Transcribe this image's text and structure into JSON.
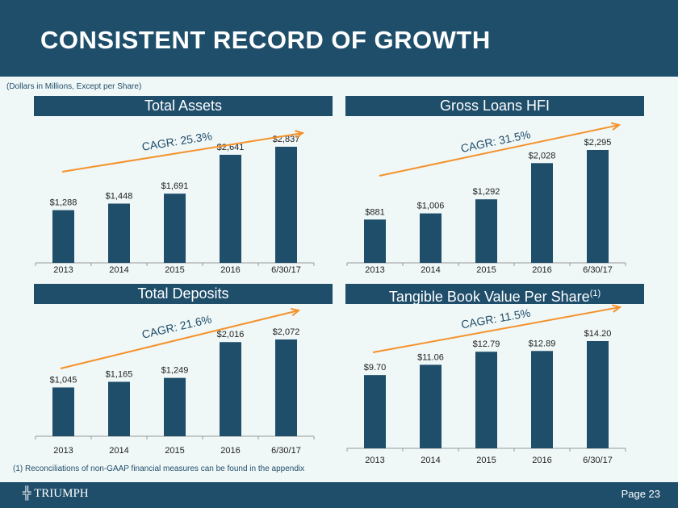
{
  "header": {
    "title": "CONSISTENT RECORD OF GROWTH",
    "note": "(Dollars in Millions, Except per Share)"
  },
  "footnote": "(1)   Reconciliations of non-GAAP financial measures can be found in the appendix",
  "footer": {
    "logo": "TRIUMPH",
    "page": "Page 23"
  },
  "colors": {
    "bar": "#1f4e6b",
    "arrow": "#f4922a",
    "bg": "#f0f7f7"
  },
  "chart_data": [
    {
      "type": "bar",
      "title": "Total Assets",
      "categories": [
        "2013",
        "2014",
        "2015",
        "2016",
        "6/30/17"
      ],
      "values": [
        1288,
        1448,
        1691,
        2641,
        2837
      ],
      "labels": [
        "$1,288",
        "$1,448",
        "$1,691",
        "$2,641",
        "$2,837"
      ],
      "annotation": "CAGR: 25.3%",
      "ylim": [
        0,
        2837
      ]
    },
    {
      "type": "bar",
      "title": "Gross Loans HFI",
      "categories": [
        "2013",
        "2014",
        "2015",
        "2016",
        "6/30/17"
      ],
      "values": [
        881,
        1006,
        1292,
        2028,
        2295
      ],
      "labels": [
        "$881",
        "$1,006",
        "$1,292",
        "$2,028",
        "$2,295"
      ],
      "annotation": "CAGR: 31.5%",
      "ylim": [
        0,
        2295
      ]
    },
    {
      "type": "bar",
      "title": "Total Deposits",
      "categories": [
        "2013",
        "2014",
        "2015",
        "2016",
        "6/30/17"
      ],
      "values": [
        1045,
        1165,
        1249,
        2016,
        2072
      ],
      "labels": [
        "$1,045",
        "$1,165",
        "$1,249",
        "$2,016",
        "$2,072"
      ],
      "annotation": "CAGR: 21.6%",
      "ylim": [
        0,
        2072
      ]
    },
    {
      "type": "bar",
      "title": "Tangible Book Value Per Share",
      "title_sup": "(1)",
      "categories": [
        "2013",
        "2014",
        "2015",
        "2016",
        "6/30/17"
      ],
      "values": [
        9.7,
        11.06,
        12.79,
        12.89,
        14.2
      ],
      "labels": [
        "$9.70",
        "$11.06",
        "$12.79",
        "$12.89",
        "$14.20"
      ],
      "annotation": "CAGR: 11.5%",
      "ylim": [
        0,
        14.2
      ]
    }
  ]
}
